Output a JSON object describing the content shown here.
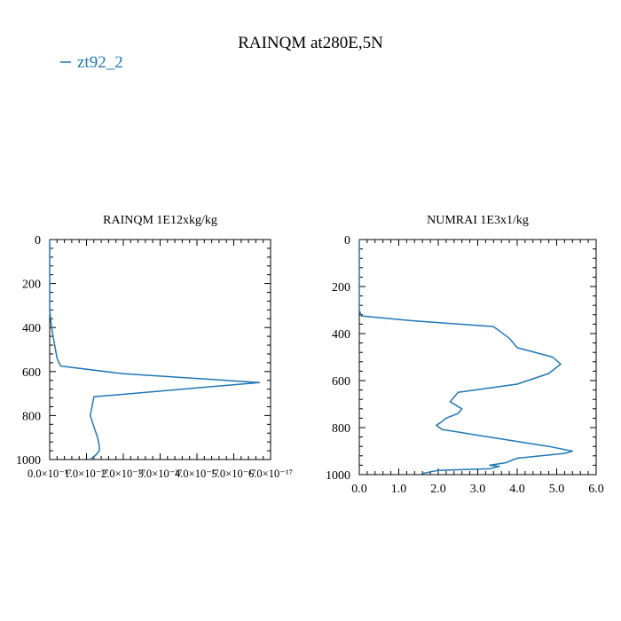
{
  "figure": {
    "title": "RAINQM at280E,5N",
    "legend": {
      "label": "zt92_2",
      "color": "#1f77b4"
    }
  },
  "chart_data": [
    {
      "type": "line",
      "title": "RAINQM  1E12xkg/kg",
      "xlabel": "",
      "ylabel": "",
      "xlim": [
        0,
        6e-17
      ],
      "ylim": [
        1000,
        0
      ],
      "y_inverted": true,
      "xticks": [
        0,
        1e-17,
        2e-17,
        3e-17,
        4e-17,
        5e-17,
        6e-17
      ],
      "xtick_labels": [
        "0.0×10⁻¹⁷",
        "1.0×10⁻¹⁷",
        "2.0×10⁻¹⁷",
        "3.0×10⁻¹⁷",
        "4.0×10⁻¹⁷",
        "5.0×10⁻¹⁷",
        "6.0×10⁻¹⁷"
      ],
      "yticks": [
        0,
        200,
        400,
        600,
        800,
        1000
      ],
      "ytick_labels": [
        "0",
        "200",
        "400",
        "600",
        "800",
        "1000"
      ],
      "grid": false,
      "series": [
        {
          "name": "zt92_2",
          "color": "#1f77b4",
          "x": [
            0,
            0,
            5e-19,
            2e-18,
            3e-18,
            2e-17,
            5.7e-17,
            1.2e-17,
            1.15e-17,
            1.1e-17,
            1.2e-17,
            1.3e-17,
            1.35e-17,
            1.35e-17,
            1.25e-17,
            1.1e-17
          ],
          "y": [
            0,
            320,
            400,
            540,
            575,
            610,
            650,
            715,
            760,
            800,
            850,
            900,
            940,
            960,
            980,
            1000
          ]
        }
      ]
    },
    {
      "type": "line",
      "title": "NUMRAI  1E3x1/kg",
      "xlabel": "",
      "ylabel": "",
      "xlim": [
        0,
        6.0
      ],
      "ylim": [
        1000,
        0
      ],
      "y_inverted": true,
      "xticks": [
        0,
        1,
        2,
        3,
        4,
        5,
        6
      ],
      "xtick_labels": [
        "0.0",
        "1.0",
        "2.0",
        "3.0",
        "4.0",
        "5.0",
        "6.0"
      ],
      "yticks": [
        0,
        200,
        400,
        600,
        800,
        1000
      ],
      "ytick_labels": [
        "0",
        "200",
        "400",
        "600",
        "800",
        "1000"
      ],
      "grid": false,
      "series": [
        {
          "name": "zt92_2",
          "color": "#1f77b4",
          "x": [
            0,
            0,
            0.05,
            1.3,
            3.4,
            3.6,
            3.8,
            4.0,
            4.9,
            5.1,
            4.8,
            4.0,
            2.5,
            2.3,
            2.6,
            2.5,
            2.2,
            2.05,
            1.95,
            2.1,
            2.9,
            4.8,
            5.4,
            5.2,
            4.0,
            3.7,
            3.3,
            3.55,
            3.3,
            2.0,
            1.6
          ],
          "y": [
            0,
            300,
            325,
            345,
            370,
            395,
            420,
            460,
            500,
            530,
            570,
            615,
            650,
            690,
            720,
            740,
            760,
            780,
            790,
            808,
            830,
            880,
            900,
            910,
            930,
            950,
            960,
            965,
            975,
            982,
            995
          ]
        }
      ]
    }
  ]
}
